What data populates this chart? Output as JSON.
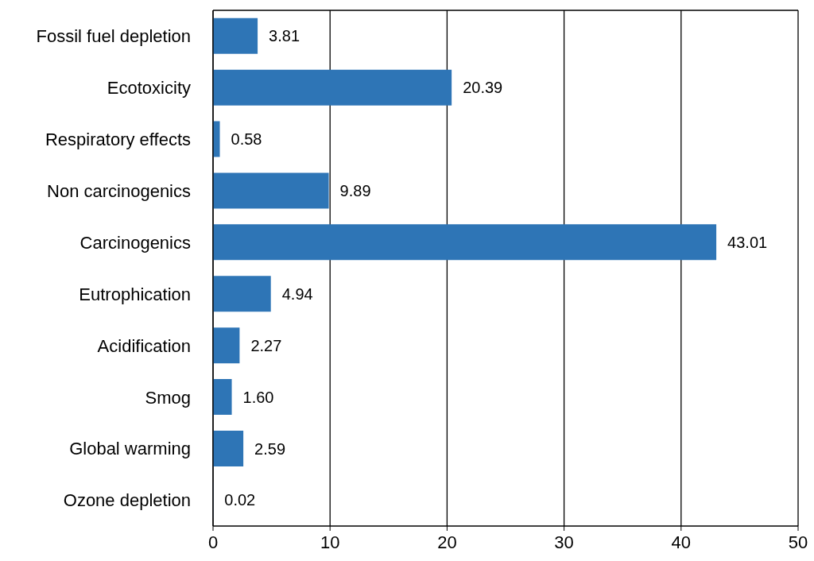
{
  "chart_data": {
    "type": "bar",
    "orientation": "horizontal",
    "categories": [
      "Fossil fuel depletion",
      "Ecotoxicity",
      "Respiratory effects",
      "Non carcinogenics",
      "Carcinogenics",
      "Eutrophication",
      "Acidification",
      "Smog",
      "Global warming",
      "Ozone depletion"
    ],
    "values": [
      3.81,
      20.39,
      0.58,
      9.89,
      43.01,
      4.94,
      2.27,
      1.6,
      2.59,
      0.02
    ],
    "value_labels": [
      "3.81",
      "20.39",
      "0.58",
      "9.89",
      "43.01",
      "4.94",
      "2.27",
      "1.60",
      "2.59",
      "0.02"
    ],
    "color": "#2e75b6",
    "xlim": [
      0,
      50
    ],
    "xticks": [
      0,
      10,
      20,
      30,
      40,
      50
    ],
    "grid": "x"
  }
}
